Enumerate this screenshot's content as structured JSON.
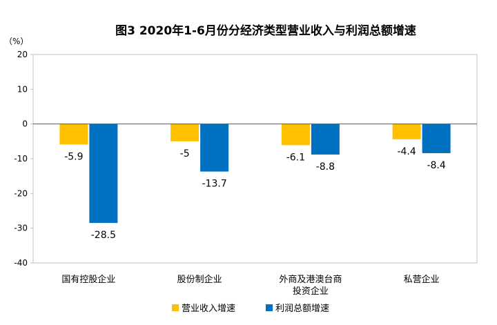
{
  "chart_data": {
    "type": "bar",
    "title": "图3  2020年1-6月份分经济类型营业收入与利润总额增速",
    "ylabel": "（%）",
    "ylim": [
      -40,
      20
    ],
    "yticks": [
      20,
      10,
      0,
      -10,
      -20,
      -30,
      -40
    ],
    "categories": [
      [
        "国有控股企业"
      ],
      [
        "股份制企业"
      ],
      [
        "外商及港澳台商",
        "投资企业"
      ],
      [
        "私营企业"
      ]
    ],
    "series": [
      {
        "name": "营业收入增速",
        "values": [
          -5.9,
          -5.0,
          -6.1,
          -4.4
        ],
        "color": "#FFC000"
      },
      {
        "name": "利润总额增速",
        "values": [
          -28.5,
          -13.7,
          -8.8,
          -8.4
        ],
        "color": "#0070C0"
      }
    ],
    "grid": false,
    "legend": "bottom"
  }
}
